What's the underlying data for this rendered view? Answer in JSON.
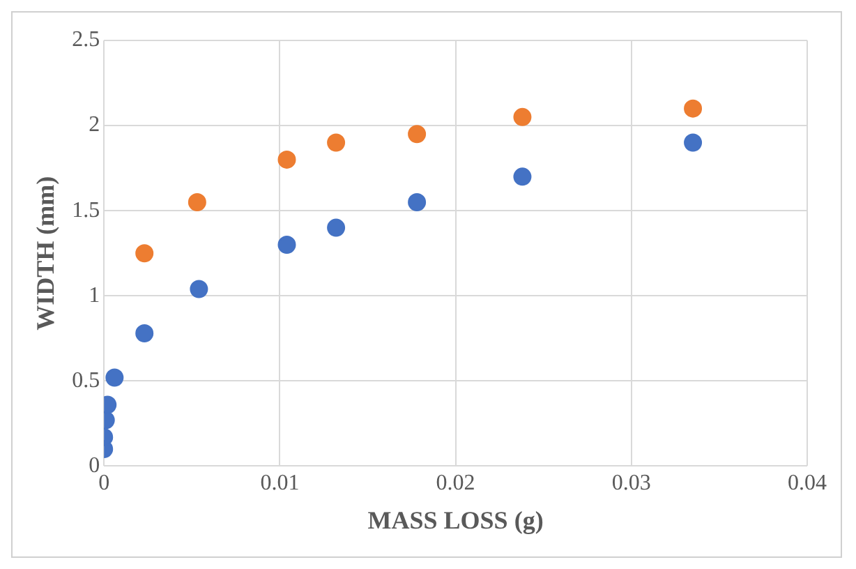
{
  "chart_data": {
    "type": "scatter",
    "xlabel": "MASS LOSS (g)",
    "ylabel": "WIDTH (mm)",
    "xlim": [
      0,
      0.04
    ],
    "xticks": [
      0,
      0.01,
      0.02,
      0.03,
      0.04
    ],
    "ylim": [
      0,
      2.5
    ],
    "yticks": [
      0,
      0.5,
      1,
      1.5,
      2,
      2.5
    ],
    "grid": true,
    "marker": "circle",
    "series": [
      {
        "color": "#4472c4",
        "x": [
          0,
          0,
          0.0001,
          0.0002,
          0.0006,
          0.0023,
          0.0054,
          0.0104,
          0.0132,
          0.0178,
          0.0238,
          0.0335
        ],
        "values": [
          0.1,
          0.17,
          0.27,
          0.36,
          0.52,
          0.78,
          1.04,
          1.3,
          1.4,
          1.55,
          1.7,
          1.9
        ]
      },
      {
        "color": "#ed7d31",
        "x": [
          0.0023,
          0.0053,
          0.0104,
          0.0132,
          0.0178,
          0.0238,
          0.0335
        ],
        "values": [
          1.25,
          1.55,
          1.8,
          1.9,
          1.95,
          2.05,
          2.1
        ]
      }
    ]
  }
}
